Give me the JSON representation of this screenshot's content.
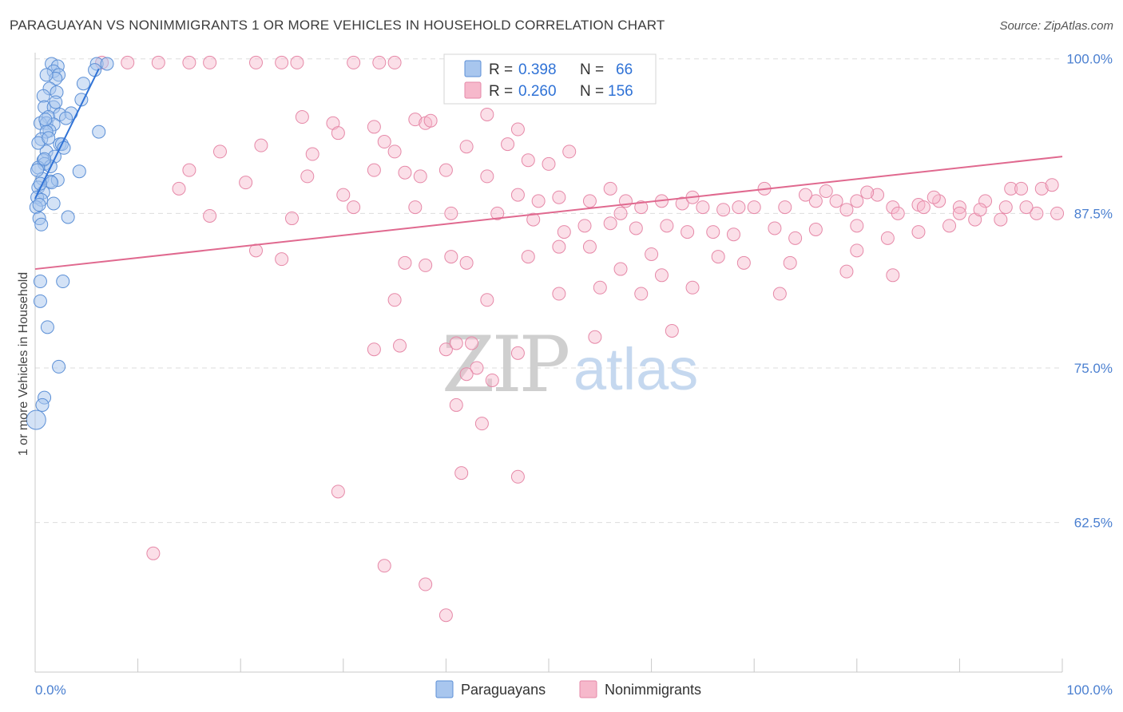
{
  "header": {
    "title": "PARAGUAYAN VS NONIMMIGRANTS 1 OR MORE VEHICLES IN HOUSEHOLD CORRELATION CHART",
    "source": "Source: ZipAtlas.com"
  },
  "watermark": {
    "zip": "ZIP",
    "atlas": "atlas"
  },
  "legend": {
    "rows": [
      {
        "r_label": "R =",
        "r_value": "0.398",
        "n_label": "N =",
        "n_value": "66"
      },
      {
        "r_label": "R =",
        "r_value": "0.260",
        "n_label": "N =",
        "n_value": "156"
      }
    ],
    "bottom": [
      "Paraguayans",
      "Nonimmigrants"
    ]
  },
  "colors": {
    "blue_fill": "#a8c6ee",
    "blue_stroke": "#5b8fd6",
    "blue_line": "#2f72d6",
    "pink_fill": "#f6b8cb",
    "pink_stroke": "#e689a8",
    "pink_line": "#e0698f",
    "tick_text": "#4a7fd0",
    "grid": "#dddddd"
  },
  "chart_data": {
    "type": "scatter",
    "title": "PARAGUAYAN VS NONIMMIGRANTS 1 OR MORE VEHICLES IN HOUSEHOLD CORRELATION CHART",
    "xlabel": "",
    "ylabel": "1 or more Vehicles in Household",
    "xlim": [
      0,
      100
    ],
    "ylim": [
      50.4,
      100.5
    ],
    "x_tick_labels": [
      "0.0%",
      "100.0%"
    ],
    "y_ticks": [
      62.5,
      75.0,
      87.5,
      100.0
    ],
    "y_tick_labels": [
      "62.5%",
      "75.0%",
      "87.5%",
      "100.0%"
    ],
    "grid": "horizontal dashed",
    "legend_placement": "top-center",
    "series": [
      {
        "name": "Paraguayans",
        "color": "#a8c6ee",
        "points": [
          [
            1.6,
            99.6
          ],
          [
            2.2,
            99.4
          ],
          [
            6.0,
            99.6
          ],
          [
            7.0,
            99.6
          ],
          [
            1.8,
            99.0
          ],
          [
            2.3,
            98.7
          ],
          [
            2.0,
            98.4
          ],
          [
            1.1,
            98.7
          ],
          [
            4.7,
            98.0
          ],
          [
            1.4,
            97.6
          ],
          [
            2.1,
            97.3
          ],
          [
            0.8,
            97.0
          ],
          [
            0.9,
            96.1
          ],
          [
            4.5,
            96.7
          ],
          [
            1.8,
            96.1
          ],
          [
            1.3,
            95.3
          ],
          [
            2.4,
            95.5
          ],
          [
            3.5,
            95.6
          ],
          [
            0.5,
            94.8
          ],
          [
            1.1,
            94.8
          ],
          [
            1.8,
            94.7
          ],
          [
            1.4,
            94.2
          ],
          [
            1.1,
            94.1
          ],
          [
            0.6,
            93.5
          ],
          [
            2.4,
            93.1
          ],
          [
            2.6,
            93.1
          ],
          [
            6.2,
            94.1
          ],
          [
            1.1,
            92.5
          ],
          [
            1.9,
            92.1
          ],
          [
            0.8,
            91.8
          ],
          [
            0.9,
            91.5
          ],
          [
            1.5,
            91.3
          ],
          [
            0.3,
            91.2
          ],
          [
            4.3,
            90.9
          ],
          [
            0.7,
            90.3
          ],
          [
            1.5,
            90.1
          ],
          [
            2.2,
            90.2
          ],
          [
            1.6,
            90.0
          ],
          [
            0.3,
            89.6
          ],
          [
            0.8,
            89.2
          ],
          [
            0.2,
            88.8
          ],
          [
            0.6,
            88.6
          ],
          [
            1.8,
            88.3
          ],
          [
            0.1,
            88.0
          ],
          [
            3.2,
            87.2
          ],
          [
            0.4,
            87.1
          ],
          [
            0.6,
            86.6
          ],
          [
            0.5,
            82.0
          ],
          [
            2.7,
            82.0
          ],
          [
            0.5,
            80.4
          ],
          [
            1.2,
            78.3
          ],
          [
            2.3,
            75.1
          ],
          [
            0.9,
            72.6
          ],
          [
            0.7,
            72.0
          ],
          [
            0.1,
            70.8
          ],
          [
            5.8,
            99.1
          ],
          [
            0.2,
            91.0
          ],
          [
            0.4,
            88.2
          ],
          [
            1.0,
            95.1
          ],
          [
            2.0,
            96.5
          ],
          [
            0.3,
            93.2
          ],
          [
            3.0,
            95.2
          ],
          [
            0.5,
            89.9
          ],
          [
            1.3,
            93.6
          ],
          [
            2.8,
            92.8
          ],
          [
            0.9,
            91.9
          ]
        ]
      },
      {
        "name": "Nonimmigrants",
        "color": "#f6b8cb",
        "points": [
          [
            6.5,
            99.7
          ],
          [
            9.0,
            99.7
          ],
          [
            12.0,
            99.7
          ],
          [
            15.0,
            99.7
          ],
          [
            17.0,
            99.7
          ],
          [
            21.5,
            99.7
          ],
          [
            24.0,
            99.7
          ],
          [
            25.5,
            99.7
          ],
          [
            31.0,
            99.7
          ],
          [
            33.5,
            99.7
          ],
          [
            35.0,
            99.7
          ],
          [
            26.0,
            95.3
          ],
          [
            29.0,
            94.8
          ],
          [
            33.0,
            94.5
          ],
          [
            29.5,
            94.0
          ],
          [
            34.0,
            93.3
          ],
          [
            37.0,
            95.1
          ],
          [
            38.0,
            94.8
          ],
          [
            42.0,
            92.9
          ],
          [
            46.0,
            93.1
          ],
          [
            47.0,
            94.3
          ],
          [
            35.0,
            92.5
          ],
          [
            36.0,
            90.8
          ],
          [
            37.5,
            90.5
          ],
          [
            33.0,
            91.0
          ],
          [
            48.0,
            91.8
          ],
          [
            52.0,
            92.5
          ],
          [
            27.0,
            92.3
          ],
          [
            38.5,
            95.0
          ],
          [
            44.0,
            95.5
          ],
          [
            40.0,
            91.0
          ],
          [
            50.0,
            91.5
          ],
          [
            40.5,
            87.5
          ],
          [
            25.0,
            87.1
          ],
          [
            17.0,
            87.3
          ],
          [
            15.0,
            91.0
          ],
          [
            20.5,
            90.0
          ],
          [
            26.5,
            90.5
          ],
          [
            31.0,
            88.0
          ],
          [
            37.0,
            88.0
          ],
          [
            44.0,
            90.5
          ],
          [
            47.0,
            89.0
          ],
          [
            49.0,
            88.5
          ],
          [
            51.0,
            88.8
          ],
          [
            54.0,
            88.5
          ],
          [
            56.0,
            89.5
          ],
          [
            57.5,
            88.5
          ],
          [
            59.0,
            88.0
          ],
          [
            61.0,
            88.5
          ],
          [
            63.0,
            88.3
          ],
          [
            65.0,
            88.0
          ],
          [
            67.0,
            87.8
          ],
          [
            68.5,
            88.0
          ],
          [
            70.0,
            88.0
          ],
          [
            73.0,
            88.0
          ],
          [
            76.0,
            88.5
          ],
          [
            78.0,
            88.5
          ],
          [
            79.0,
            87.8
          ],
          [
            80.0,
            88.5
          ],
          [
            82.0,
            89.0
          ],
          [
            83.5,
            88.0
          ],
          [
            86.0,
            88.2
          ],
          [
            84.0,
            87.5
          ],
          [
            86.5,
            88.0
          ],
          [
            88.0,
            88.5
          ],
          [
            90.0,
            88.0
          ],
          [
            92.5,
            88.5
          ],
          [
            95.0,
            89.5
          ],
          [
            96.0,
            89.5
          ],
          [
            98.0,
            89.5
          ],
          [
            99.0,
            89.8
          ],
          [
            45.0,
            87.5
          ],
          [
            48.5,
            87.0
          ],
          [
            51.5,
            86.0
          ],
          [
            53.5,
            86.5
          ],
          [
            56.0,
            86.7
          ],
          [
            58.5,
            86.3
          ],
          [
            61.5,
            86.5
          ],
          [
            63.5,
            86.0
          ],
          [
            66.0,
            86.0
          ],
          [
            68.0,
            85.8
          ],
          [
            72.0,
            86.3
          ],
          [
            74.0,
            85.5
          ],
          [
            76.0,
            86.2
          ],
          [
            80.0,
            86.5
          ],
          [
            83.0,
            85.5
          ],
          [
            86.0,
            86.0
          ],
          [
            89.0,
            86.5
          ],
          [
            91.5,
            87.0
          ],
          [
            94.0,
            87.0
          ],
          [
            97.5,
            87.5
          ],
          [
            99.5,
            87.5
          ],
          [
            90.0,
            87.5
          ],
          [
            92.0,
            87.8
          ],
          [
            94.5,
            88.0
          ],
          [
            96.5,
            88.0
          ],
          [
            21.5,
            84.5
          ],
          [
            24.0,
            83.8
          ],
          [
            36.0,
            83.5
          ],
          [
            40.5,
            84.0
          ],
          [
            48.0,
            84.0
          ],
          [
            51.0,
            84.8
          ],
          [
            54.0,
            84.8
          ],
          [
            60.0,
            84.2
          ],
          [
            66.5,
            84.0
          ],
          [
            69.0,
            83.5
          ],
          [
            80.0,
            84.5
          ],
          [
            83.5,
            82.5
          ],
          [
            73.5,
            83.5
          ],
          [
            79.0,
            82.8
          ],
          [
            38.0,
            83.3
          ],
          [
            42.0,
            83.5
          ],
          [
            57.0,
            83.0
          ],
          [
            61.0,
            82.5
          ],
          [
            64.0,
            81.5
          ],
          [
            35.0,
            80.5
          ],
          [
            44.0,
            80.5
          ],
          [
            55.0,
            81.5
          ],
          [
            59.0,
            81.0
          ],
          [
            72.5,
            81.0
          ],
          [
            51.0,
            81.0
          ],
          [
            62.0,
            78.0
          ],
          [
            54.5,
            77.5
          ],
          [
            40.0,
            76.5
          ],
          [
            42.5,
            77.0
          ],
          [
            47.0,
            76.2
          ],
          [
            41.0,
            77.0
          ],
          [
            43.0,
            75.0
          ],
          [
            33.0,
            76.5
          ],
          [
            35.5,
            76.8
          ],
          [
            42.0,
            74.5
          ],
          [
            44.5,
            74.0
          ],
          [
            41.0,
            72.0
          ],
          [
            43.5,
            70.5
          ],
          [
            41.5,
            66.5
          ],
          [
            47.0,
            66.2
          ],
          [
            29.5,
            65.0
          ],
          [
            11.5,
            60.0
          ],
          [
            34.0,
            59.0
          ],
          [
            38.0,
            57.5
          ],
          [
            40.0,
            55.0
          ],
          [
            14.0,
            89.5
          ],
          [
            18.0,
            92.5
          ],
          [
            22.0,
            93.0
          ],
          [
            30.0,
            89.0
          ],
          [
            57.0,
            87.5
          ],
          [
            64.0,
            88.8
          ],
          [
            71.0,
            89.5
          ],
          [
            75.0,
            89.0
          ],
          [
            77.0,
            89.3
          ],
          [
            81.0,
            89.2
          ],
          [
            87.5,
            88.8
          ]
        ]
      }
    ],
    "trendlines": [
      {
        "series": "Paraguayans",
        "from": [
          0.0,
          88.7
        ],
        "to": [
          6.2,
          99.2
        ]
      },
      {
        "series": "Nonimmigrants",
        "from": [
          0.0,
          83.0
        ],
        "to": [
          100.0,
          92.1
        ]
      }
    ]
  }
}
